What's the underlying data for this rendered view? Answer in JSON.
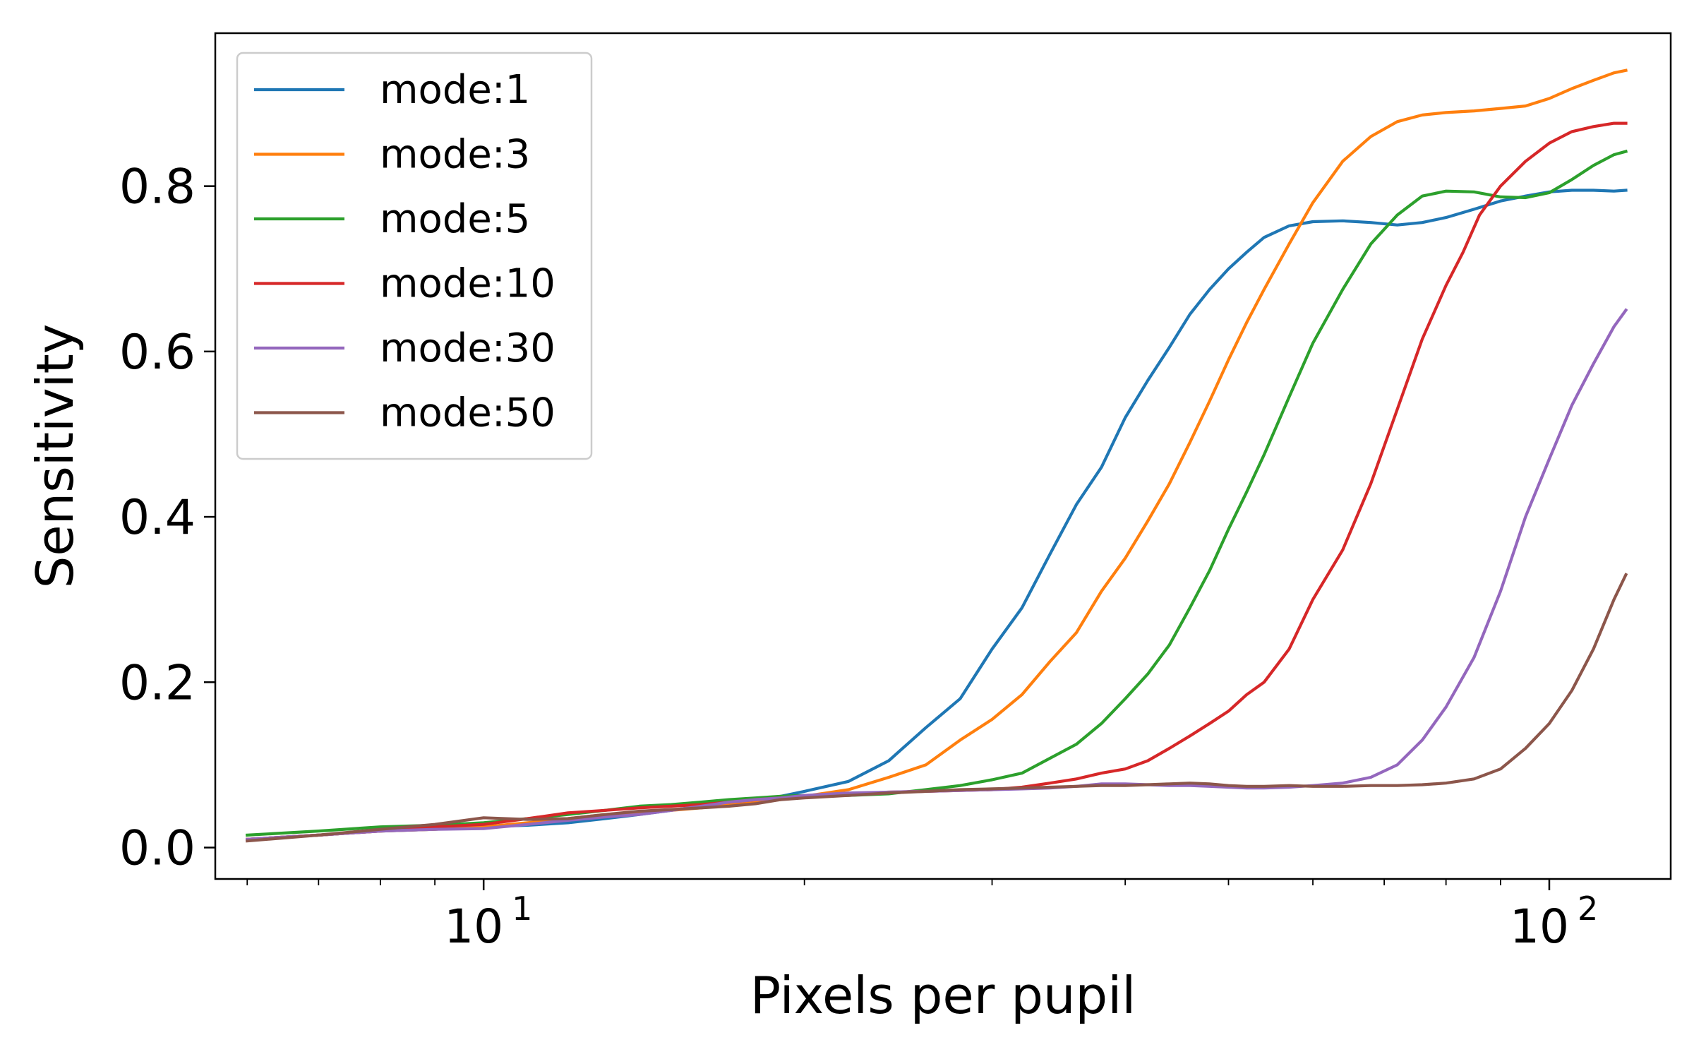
{
  "chart_data": {
    "type": "line",
    "title": "",
    "xlabel": "Pixels per pupil",
    "ylabel": "Sensitivity",
    "xscale": "log",
    "xlim": [
      5.6,
      130
    ],
    "ylim": [
      -0.038,
      0.985
    ],
    "x_ticks": [
      {
        "value": 10,
        "base": "10",
        "exp": "1"
      },
      {
        "value": 100,
        "base": "10",
        "exp": "2"
      }
    ],
    "y_ticks": [
      {
        "value": 0.0,
        "label": "0.0"
      },
      {
        "value": 0.2,
        "label": "0.2"
      },
      {
        "value": 0.4,
        "label": "0.4"
      },
      {
        "value": 0.6,
        "label": "0.6"
      },
      {
        "value": 0.8,
        "label": "0.8"
      }
    ],
    "grid": false,
    "legend_position": "top-left",
    "series": [
      {
        "name": "mode:1",
        "color": "#1f77b4",
        "points": [
          [
            6,
            0.01
          ],
          [
            7,
            0.015
          ],
          [
            8,
            0.02
          ],
          [
            9,
            0.022
          ],
          [
            10,
            0.025
          ],
          [
            11,
            0.027
          ],
          [
            12,
            0.03
          ],
          [
            13,
            0.035
          ],
          [
            14,
            0.04
          ],
          [
            15,
            0.045
          ],
          [
            16,
            0.05
          ],
          [
            17,
            0.055
          ],
          [
            18,
            0.058
          ],
          [
            19,
            0.062
          ],
          [
            20,
            0.068
          ],
          [
            22,
            0.08
          ],
          [
            24,
            0.105
          ],
          [
            26,
            0.145
          ],
          [
            28,
            0.18
          ],
          [
            30,
            0.24
          ],
          [
            32,
            0.29
          ],
          [
            34,
            0.355
          ],
          [
            36,
            0.415
          ],
          [
            38,
            0.46
          ],
          [
            40,
            0.52
          ],
          [
            42,
            0.565
          ],
          [
            44,
            0.605
          ],
          [
            46,
            0.645
          ],
          [
            48,
            0.675
          ],
          [
            50,
            0.7
          ],
          [
            52,
            0.72
          ],
          [
            54,
            0.738
          ],
          [
            57,
            0.752
          ],
          [
            60,
            0.757
          ],
          [
            64,
            0.758
          ],
          [
            68,
            0.756
          ],
          [
            72,
            0.753
          ],
          [
            76,
            0.756
          ],
          [
            80,
            0.762
          ],
          [
            85,
            0.772
          ],
          [
            90,
            0.782
          ],
          [
            95,
            0.788
          ],
          [
            100,
            0.793
          ],
          [
            105,
            0.795
          ],
          [
            110,
            0.795
          ],
          [
            115,
            0.794
          ],
          [
            118,
            0.795
          ]
        ]
      },
      {
        "name": "mode:3",
        "color": "#ff7f0e",
        "points": [
          [
            6,
            0.01
          ],
          [
            7,
            0.015
          ],
          [
            8,
            0.02
          ],
          [
            9,
            0.022
          ],
          [
            10,
            0.025
          ],
          [
            11,
            0.03
          ],
          [
            12,
            0.035
          ],
          [
            13,
            0.04
          ],
          [
            14,
            0.043
          ],
          [
            15,
            0.045
          ],
          [
            16,
            0.048
          ],
          [
            17,
            0.052
          ],
          [
            18,
            0.055
          ],
          [
            19,
            0.058
          ],
          [
            20,
            0.062
          ],
          [
            22,
            0.07
          ],
          [
            24,
            0.085
          ],
          [
            26,
            0.1
          ],
          [
            28,
            0.13
          ],
          [
            30,
            0.155
          ],
          [
            32,
            0.185
          ],
          [
            34,
            0.225
          ],
          [
            36,
            0.26
          ],
          [
            38,
            0.31
          ],
          [
            40,
            0.35
          ],
          [
            42,
            0.395
          ],
          [
            44,
            0.44
          ],
          [
            46,
            0.49
          ],
          [
            48,
            0.54
          ],
          [
            50,
            0.59
          ],
          [
            52,
            0.635
          ],
          [
            54,
            0.675
          ],
          [
            57,
            0.73
          ],
          [
            60,
            0.78
          ],
          [
            64,
            0.83
          ],
          [
            68,
            0.86
          ],
          [
            72,
            0.878
          ],
          [
            76,
            0.886
          ],
          [
            80,
            0.889
          ],
          [
            85,
            0.891
          ],
          [
            90,
            0.894
          ],
          [
            95,
            0.897
          ],
          [
            100,
            0.906
          ],
          [
            105,
            0.918
          ],
          [
            110,
            0.928
          ],
          [
            115,
            0.937
          ],
          [
            118,
            0.94
          ]
        ]
      },
      {
        "name": "mode:5",
        "color": "#2ca02c",
        "points": [
          [
            6,
            0.015
          ],
          [
            7,
            0.02
          ],
          [
            8,
            0.025
          ],
          [
            9,
            0.027
          ],
          [
            10,
            0.03
          ],
          [
            11,
            0.035
          ],
          [
            12,
            0.04
          ],
          [
            13,
            0.045
          ],
          [
            14,
            0.05
          ],
          [
            15,
            0.052
          ],
          [
            16,
            0.055
          ],
          [
            17,
            0.058
          ],
          [
            18,
            0.06
          ],
          [
            19,
            0.062
          ],
          [
            20,
            0.063
          ],
          [
            22,
            0.063
          ],
          [
            24,
            0.065
          ],
          [
            26,
            0.07
          ],
          [
            28,
            0.075
          ],
          [
            30,
            0.082
          ],
          [
            32,
            0.09
          ],
          [
            34,
            0.108
          ],
          [
            36,
            0.125
          ],
          [
            38,
            0.15
          ],
          [
            40,
            0.18
          ],
          [
            42,
            0.21
          ],
          [
            44,
            0.245
          ],
          [
            46,
            0.29
          ],
          [
            48,
            0.335
          ],
          [
            50,
            0.385
          ],
          [
            52,
            0.43
          ],
          [
            54,
            0.475
          ],
          [
            57,
            0.545
          ],
          [
            60,
            0.61
          ],
          [
            64,
            0.675
          ],
          [
            68,
            0.73
          ],
          [
            72,
            0.765
          ],
          [
            76,
            0.788
          ],
          [
            80,
            0.794
          ],
          [
            85,
            0.793
          ],
          [
            90,
            0.787
          ],
          [
            95,
            0.786
          ],
          [
            100,
            0.792
          ],
          [
            105,
            0.808
          ],
          [
            110,
            0.825
          ],
          [
            115,
            0.838
          ],
          [
            118,
            0.842
          ]
        ]
      },
      {
        "name": "mode:10",
        "color": "#d62728",
        "points": [
          [
            6,
            0.01
          ],
          [
            7,
            0.015
          ],
          [
            8,
            0.02
          ],
          [
            9,
            0.025
          ],
          [
            10,
            0.028
          ],
          [
            11,
            0.035
          ],
          [
            12,
            0.042
          ],
          [
            13,
            0.045
          ],
          [
            14,
            0.048
          ],
          [
            15,
            0.05
          ],
          [
            16,
            0.052
          ],
          [
            17,
            0.055
          ],
          [
            18,
            0.058
          ],
          [
            19,
            0.06
          ],
          [
            20,
            0.062
          ],
          [
            22,
            0.065
          ],
          [
            24,
            0.067
          ],
          [
            26,
            0.068
          ],
          [
            28,
            0.069
          ],
          [
            30,
            0.07
          ],
          [
            32,
            0.073
          ],
          [
            34,
            0.078
          ],
          [
            36,
            0.083
          ],
          [
            38,
            0.09
          ],
          [
            40,
            0.095
          ],
          [
            42,
            0.105
          ],
          [
            44,
            0.12
          ],
          [
            46,
            0.135
          ],
          [
            48,
            0.15
          ],
          [
            50,
            0.165
          ],
          [
            52,
            0.185
          ],
          [
            54,
            0.2
          ],
          [
            57,
            0.24
          ],
          [
            60,
            0.3
          ],
          [
            64,
            0.36
          ],
          [
            68,
            0.44
          ],
          [
            72,
            0.53
          ],
          [
            76,
            0.615
          ],
          [
            80,
            0.68
          ],
          [
            83,
            0.72
          ],
          [
            86,
            0.765
          ],
          [
            90,
            0.8
          ],
          [
            95,
            0.83
          ],
          [
            100,
            0.852
          ],
          [
            105,
            0.866
          ],
          [
            110,
            0.872
          ],
          [
            115,
            0.876
          ],
          [
            118,
            0.876
          ]
        ]
      },
      {
        "name": "mode:30",
        "color": "#9467bd",
        "points": [
          [
            6,
            0.01
          ],
          [
            7,
            0.015
          ],
          [
            8,
            0.02
          ],
          [
            9,
            0.022
          ],
          [
            10,
            0.023
          ],
          [
            11,
            0.028
          ],
          [
            12,
            0.033
          ],
          [
            13,
            0.037
          ],
          [
            14,
            0.04
          ],
          [
            15,
            0.045
          ],
          [
            16,
            0.05
          ],
          [
            17,
            0.055
          ],
          [
            18,
            0.058
          ],
          [
            19,
            0.06
          ],
          [
            20,
            0.063
          ],
          [
            22,
            0.066
          ],
          [
            24,
            0.067
          ],
          [
            26,
            0.068
          ],
          [
            28,
            0.069
          ],
          [
            30,
            0.07
          ],
          [
            32,
            0.071
          ],
          [
            34,
            0.072
          ],
          [
            36,
            0.074
          ],
          [
            38,
            0.077
          ],
          [
            40,
            0.077
          ],
          [
            42,
            0.076
          ],
          [
            44,
            0.075
          ],
          [
            46,
            0.075
          ],
          [
            48,
            0.074
          ],
          [
            50,
            0.073
          ],
          [
            52,
            0.072
          ],
          [
            54,
            0.072
          ],
          [
            57,
            0.073
          ],
          [
            60,
            0.075
          ],
          [
            64,
            0.078
          ],
          [
            68,
            0.085
          ],
          [
            72,
            0.1
          ],
          [
            76,
            0.13
          ],
          [
            80,
            0.17
          ],
          [
            85,
            0.23
          ],
          [
            90,
            0.31
          ],
          [
            95,
            0.4
          ],
          [
            100,
            0.47
          ],
          [
            105,
            0.535
          ],
          [
            110,
            0.585
          ],
          [
            115,
            0.63
          ],
          [
            118,
            0.65
          ]
        ]
      },
      {
        "name": "mode:50",
        "color": "#8c564b",
        "points": [
          [
            6,
            0.008
          ],
          [
            7,
            0.015
          ],
          [
            8,
            0.022
          ],
          [
            9,
            0.028
          ],
          [
            10,
            0.036
          ],
          [
            11,
            0.034
          ],
          [
            12,
            0.035
          ],
          [
            13,
            0.04
          ],
          [
            14,
            0.044
          ],
          [
            15,
            0.046
          ],
          [
            16,
            0.048
          ],
          [
            17,
            0.05
          ],
          [
            18,
            0.053
          ],
          [
            19,
            0.058
          ],
          [
            20,
            0.06
          ],
          [
            22,
            0.063
          ],
          [
            24,
            0.066
          ],
          [
            26,
            0.068
          ],
          [
            28,
            0.07
          ],
          [
            30,
            0.071
          ],
          [
            32,
            0.072
          ],
          [
            34,
            0.073
          ],
          [
            36,
            0.074
          ],
          [
            38,
            0.075
          ],
          [
            40,
            0.075
          ],
          [
            42,
            0.076
          ],
          [
            44,
            0.077
          ],
          [
            46,
            0.078
          ],
          [
            48,
            0.077
          ],
          [
            50,
            0.075
          ],
          [
            52,
            0.074
          ],
          [
            54,
            0.074
          ],
          [
            57,
            0.075
          ],
          [
            60,
            0.074
          ],
          [
            64,
            0.074
          ],
          [
            68,
            0.075
          ],
          [
            72,
            0.075
          ],
          [
            76,
            0.076
          ],
          [
            80,
            0.078
          ],
          [
            85,
            0.083
          ],
          [
            90,
            0.095
          ],
          [
            95,
            0.12
          ],
          [
            100,
            0.15
          ],
          [
            105,
            0.19
          ],
          [
            110,
            0.24
          ],
          [
            115,
            0.3
          ],
          [
            118,
            0.33
          ]
        ]
      }
    ]
  }
}
